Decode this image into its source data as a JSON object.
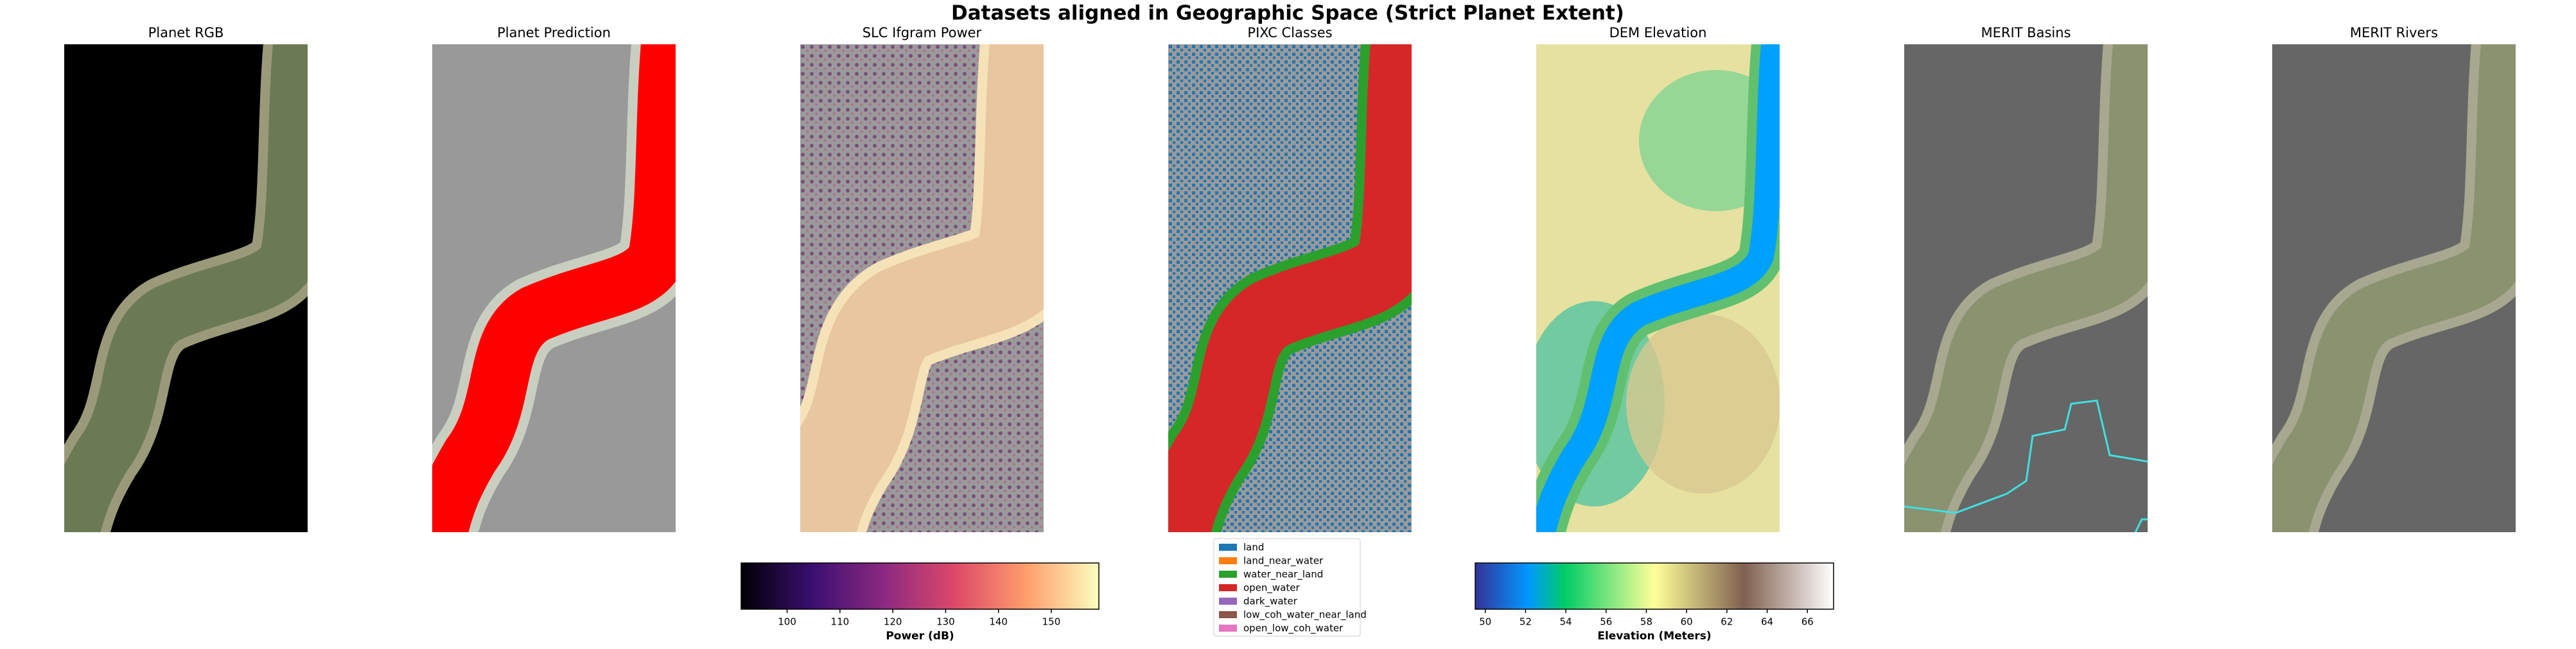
{
  "title": "Datasets aligned in Geographic Space (Strict Planet Extent)",
  "panels": [
    {
      "title": "Planet RGB"
    },
    {
      "title": "Planet Prediction"
    },
    {
      "title": "SLC Ifgram Power"
    },
    {
      "title": "PIXC Classes"
    },
    {
      "title": "DEM Elevation"
    },
    {
      "title": "MERIT Basins"
    },
    {
      "title": "MERIT Rivers"
    }
  ],
  "colorbars": [
    {
      "label": "Power (dB)",
      "colormap": "magma",
      "clim": [
        91.3,
        159
      ],
      "ticks": [
        100,
        110,
        120,
        130,
        140,
        150
      ]
    },
    {
      "label": "Elevation (Meters)",
      "colormap": "terrain",
      "clim": [
        49.5,
        67.3
      ],
      "ticks": [
        50,
        52,
        54,
        56,
        58,
        60,
        62,
        64,
        66
      ]
    }
  ],
  "legend": [
    {
      "label": "land",
      "color": "#1f77b4"
    },
    {
      "label": "land_near_water",
      "color": "#ff7f0e"
    },
    {
      "label": "water_near_land",
      "color": "#2ca02c"
    },
    {
      "label": "open_water",
      "color": "#d62728"
    },
    {
      "label": "dark_water",
      "color": "#9467bd"
    },
    {
      "label": "low_coh_water_near_land",
      "color": "#8c564b"
    },
    {
      "label": "open_low_coh_water",
      "color": "#e377c2"
    }
  ]
}
